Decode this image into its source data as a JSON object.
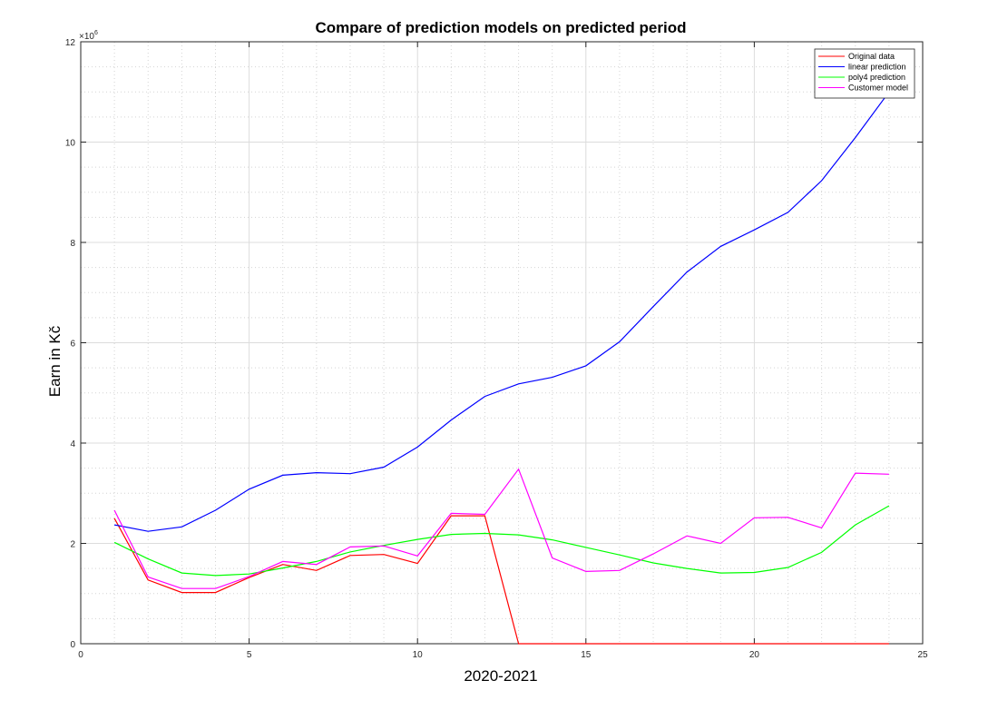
{
  "chart_data": {
    "type": "line",
    "title": "Compare of prediction models on predicted period",
    "xlabel": "2020-2021",
    "ylabel": "Earn in Kč",
    "xlim": [
      0,
      25
    ],
    "ylim": [
      0,
      12000000
    ],
    "xticks": [
      0,
      5,
      10,
      15,
      20,
      25
    ],
    "yticks": [
      0,
      2000000,
      4000000,
      6000000,
      8000000,
      10000000,
      12000000
    ],
    "ytick_labels": [
      "0",
      "2",
      "4",
      "6",
      "8",
      "10",
      "12"
    ],
    "y_exponent_label": "×10",
    "y_exponent_power": "6",
    "grid": true,
    "legend_position": "top-right",
    "x": [
      1,
      2,
      3,
      4,
      5,
      6,
      7,
      8,
      9,
      10,
      11,
      12,
      13,
      14,
      15,
      16,
      17,
      18,
      19,
      20,
      21,
      22,
      23,
      24
    ],
    "series": [
      {
        "name": "Original data",
        "color": "#ff0000",
        "values": [
          2500000,
          1270000,
          1020000,
          1020000,
          1320000,
          1580000,
          1460000,
          1760000,
          1780000,
          1600000,
          2550000,
          2550000,
          0,
          0,
          0,
          0,
          0,
          0,
          0,
          0,
          0,
          0,
          0,
          0
        ]
      },
      {
        "name": "linear prediction",
        "color": "#0000ff",
        "values": [
          2370000,
          2240000,
          2330000,
          2660000,
          3080000,
          3360000,
          3410000,
          3390000,
          3520000,
          3920000,
          4460000,
          4930000,
          5180000,
          5310000,
          5540000,
          6020000,
          6720000,
          7410000,
          7920000,
          8250000,
          8600000,
          9230000,
          10090000,
          11000000
        ]
      },
      {
        "name": "poly4 prediction",
        "color": "#00ff00",
        "values": [
          2020000,
          1690000,
          1410000,
          1360000,
          1390000,
          1510000,
          1640000,
          1830000,
          1960000,
          2080000,
          2180000,
          2200000,
          2170000,
          2070000,
          1920000,
          1770000,
          1610000,
          1500000,
          1410000,
          1420000,
          1520000,
          1820000,
          2370000,
          2750000
        ]
      },
      {
        "name": "Customer model",
        "color": "#ff00ff",
        "values": [
          2660000,
          1330000,
          1100000,
          1100000,
          1340000,
          1640000,
          1580000,
          1930000,
          1950000,
          1750000,
          2600000,
          2580000,
          3480000,
          1710000,
          1440000,
          1460000,
          1790000,
          2150000,
          2000000,
          2510000,
          2520000,
          2310000,
          3400000,
          3380000
        ]
      }
    ]
  }
}
